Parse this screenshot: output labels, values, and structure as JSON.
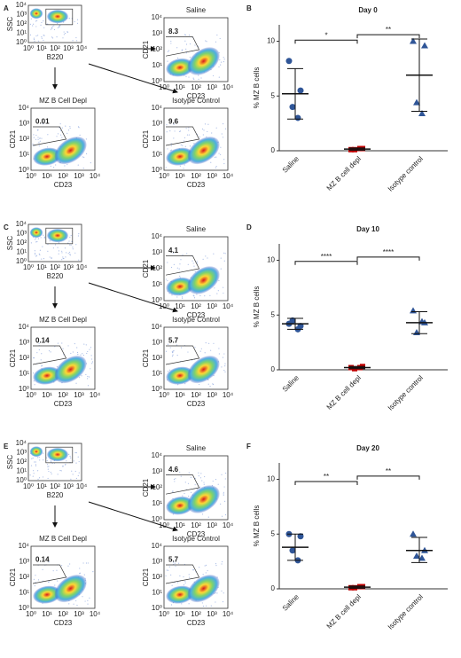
{
  "chart_data": [
    {
      "type": "dotplot",
      "panel": "B",
      "title": "Day 0",
      "y_label": "% MZ B cells",
      "categories": [
        "Saline",
        "MZ B cell depl",
        "Isotype control"
      ],
      "colors": [
        "#2f5597",
        "#c00000",
        "#2f5597"
      ],
      "markers": [
        "circle",
        "square",
        "triangle"
      ],
      "points": [
        [
          8.2,
          5.5,
          4.0,
          3.0
        ],
        [
          0.1,
          0.2,
          0.1,
          0.2
        ],
        [
          10.0,
          9.6,
          4.4,
          3.4
        ]
      ],
      "means": [
        5.2,
        0.15,
        6.9
      ],
      "sd": [
        [
          2.9,
          7.5
        ],
        [
          0.05,
          0.25
        ],
        [
          3.6,
          10.2
        ]
      ],
      "ylim": [
        0,
        11.5
      ],
      "yticks": [
        0,
        5,
        10
      ],
      "comparisons": [
        {
          "pair": [
            0,
            1
          ],
          "y": 10.1,
          "label": "*"
        },
        {
          "pair": [
            1,
            2
          ],
          "y": 10.6,
          "label": "**"
        }
      ]
    },
    {
      "type": "dotplot",
      "panel": "D",
      "title": "Day 10",
      "y_label": "% MZ B cells",
      "categories": [
        "Saline",
        "MZ B cell depl",
        "Isotype control"
      ],
      "colors": [
        "#2f5597",
        "#c00000",
        "#2f5597"
      ],
      "markers": [
        "circle",
        "square",
        "triangle"
      ],
      "points": [
        [
          4.2,
          4.0,
          4.5,
          3.7
        ],
        [
          0.2,
          0.3,
          0.1,
          0.2
        ],
        [
          5.4,
          4.3,
          3.4,
          4.4
        ]
      ],
      "means": [
        4.2,
        0.2,
        4.3
      ],
      "sd": [
        [
          3.7,
          4.7
        ],
        [
          0.1,
          0.3
        ],
        [
          3.3,
          5.3
        ]
      ],
      "ylim": [
        0,
        11.5
      ],
      "yticks": [
        0,
        5,
        10
      ],
      "comparisons": [
        {
          "pair": [
            0,
            1
          ],
          "y": 9.9,
          "label": "****"
        },
        {
          "pair": [
            1,
            2
          ],
          "y": 10.3,
          "label": "****"
        }
      ]
    },
    {
      "type": "dotplot",
      "panel": "F",
      "title": "Day 20",
      "y_label": "% MZ B cells",
      "categories": [
        "Saline",
        "MZ B cell depl",
        "Isotype control"
      ],
      "colors": [
        "#2f5597",
        "#c00000",
        "#2f5597"
      ],
      "markers": [
        "circle",
        "square",
        "triangle"
      ],
      "points": [
        [
          5.0,
          4.8,
          3.5,
          2.6
        ],
        [
          0.1,
          0.2,
          0.1,
          0.2
        ],
        [
          5.0,
          3.5,
          3.0,
          2.8
        ]
      ],
      "means": [
        3.8,
        0.15,
        3.5
      ],
      "sd": [
        [
          2.6,
          5.0
        ],
        [
          0.05,
          0.25
        ],
        [
          2.4,
          4.7
        ]
      ],
      "ylim": [
        0,
        11.5
      ],
      "yticks": [
        0,
        5,
        10
      ],
      "comparisons": [
        {
          "pair": [
            0,
            1
          ],
          "y": 9.8,
          "label": "**"
        },
        {
          "pair": [
            1,
            2
          ],
          "y": 10.3,
          "label": "**"
        }
      ]
    }
  ],
  "decade_ticks": [
    "10⁰",
    "10¹",
    "10²",
    "10³",
    "10⁴"
  ],
  "flow_panels": [
    {
      "panel": "A",
      "gating": {
        "x_label": "B220",
        "y_label": "SSC"
      },
      "x_label": "CD23",
      "y_label": "CD21",
      "plots": [
        {
          "title": "Saline",
          "gate": 8.3
        },
        {
          "title": "MZ B Cell Depl",
          "gate": 0.01
        },
        {
          "title": "Isotype Control",
          "gate": 9.6
        }
      ]
    },
    {
      "panel": "C",
      "gating": {
        "x_label": "B220",
        "y_label": "SSC"
      },
      "x_label": "CD23",
      "y_label": "CD21",
      "plots": [
        {
          "title": "Saline",
          "gate": 4.1
        },
        {
          "title": "MZ B Cell Depl",
          "gate": 0.14
        },
        {
          "title": "Isotype Control",
          "gate": 5.7
        }
      ]
    },
    {
      "panel": "E",
      "gating": {
        "x_label": "B220",
        "y_label": "SSC"
      },
      "x_label": "CD23",
      "y_label": "CD21",
      "plots": [
        {
          "title": "Saline",
          "gate": 4.6
        },
        {
          "title": "MZ B Cell Depl",
          "gate": 0.14
        },
        {
          "title": "Isotype Control",
          "gate": 5.7
        }
      ]
    }
  ]
}
